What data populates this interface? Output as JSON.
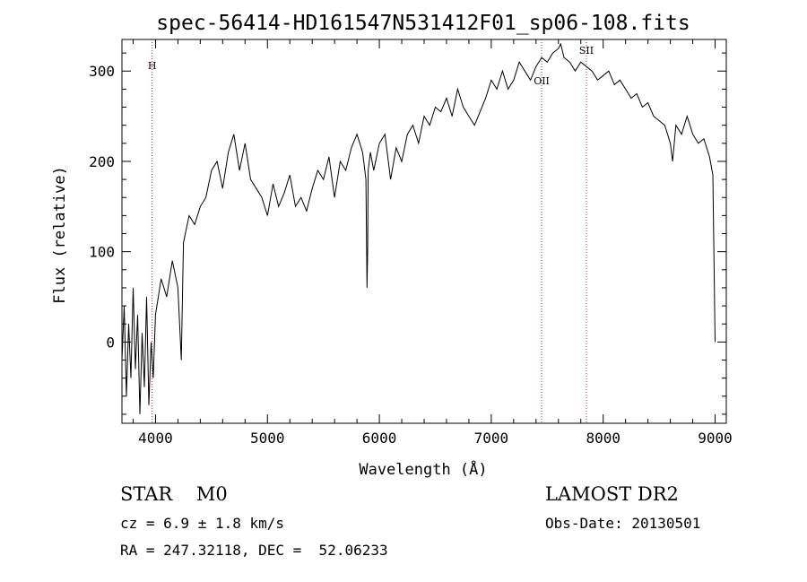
{
  "chart_data": {
    "type": "line",
    "title": "spec-56414-HD161547N531412F01_sp06-108.fits",
    "xlabel": "Wavelength (Å)",
    "ylabel": "Flux (relative)",
    "xlim": [
      3700,
      9100
    ],
    "ylim": [
      -90,
      335
    ],
    "x_ticks": [
      "4000",
      "5000",
      "6000",
      "7000",
      "8000",
      "9000"
    ],
    "y_ticks": [
      "0",
      "100",
      "200",
      "300"
    ],
    "x_tick_values": [
      4000,
      5000,
      6000,
      7000,
      8000,
      9000
    ],
    "y_tick_values": [
      0,
      100,
      200,
      300
    ],
    "grid": false,
    "line_color": "#000000",
    "marker_color": "#b03030",
    "lines": [
      {
        "label": "H",
        "x": 3970
      },
      {
        "label": "OII",
        "x": 7450
      },
      {
        "label": "SII",
        "x": 7850
      }
    ],
    "series": [
      {
        "x": [
          3700,
          3720,
          3740,
          3760,
          3780,
          3800,
          3820,
          3840,
          3860,
          3880,
          3900,
          3920,
          3940,
          3960,
          3980,
          4000,
          4050,
          4100,
          4150,
          4200,
          4230,
          4250,
          4300,
          4350,
          4400,
          4450,
          4500,
          4550,
          4600,
          4650,
          4700,
          4750,
          4800,
          4850,
          4900,
          4950,
          5000,
          5050,
          5100,
          5150,
          5200,
          5250,
          5300,
          5350,
          5400,
          5450,
          5500,
          5550,
          5600,
          5650,
          5700,
          5750,
          5800,
          5850,
          5880,
          5890,
          5895,
          5900,
          5920,
          5950,
          6000,
          6050,
          6100,
          6150,
          6200,
          6250,
          6300,
          6350,
          6400,
          6450,
          6500,
          6550,
          6600,
          6650,
          6700,
          6750,
          6800,
          6850,
          6900,
          6950,
          7000,
          7050,
          7100,
          7150,
          7200,
          7250,
          7300,
          7350,
          7400,
          7450,
          7500,
          7550,
          7600,
          7620,
          7650,
          7700,
          7750,
          7800,
          7850,
          7900,
          7950,
          8000,
          8050,
          8100,
          8150,
          8200,
          8250,
          8300,
          8350,
          8400,
          8450,
          8500,
          8550,
          8600,
          8620,
          8650,
          8700,
          8750,
          8800,
          8850,
          8900,
          8950,
          8980,
          9000
        ],
        "y": [
          -20,
          40,
          -60,
          20,
          -40,
          60,
          -30,
          30,
          -80,
          10,
          -50,
          50,
          -70,
          0,
          -40,
          30,
          70,
          50,
          90,
          60,
          -20,
          110,
          140,
          130,
          150,
          160,
          190,
          200,
          170,
          210,
          230,
          190,
          220,
          180,
          170,
          160,
          140,
          175,
          150,
          165,
          185,
          150,
          160,
          145,
          170,
          190,
          180,
          205,
          160,
          200,
          190,
          215,
          230,
          210,
          180,
          60,
          100,
          190,
          210,
          190,
          220,
          230,
          180,
          215,
          200,
          230,
          240,
          220,
          250,
          240,
          260,
          255,
          270,
          250,
          280,
          260,
          250,
          240,
          255,
          270,
          290,
          280,
          300,
          280,
          290,
          310,
          300,
          290,
          305,
          315,
          310,
          320,
          325,
          330,
          315,
          310,
          300,
          310,
          305,
          300,
          290,
          295,
          300,
          285,
          290,
          280,
          270,
          275,
          260,
          265,
          250,
          245,
          240,
          220,
          200,
          240,
          230,
          250,
          230,
          220,
          225,
          205,
          185,
          0
        ]
      }
    ],
    "info": {
      "class_label": "STAR    M0",
      "survey_label": "LAMOST DR2",
      "cz_text": "cz = 6.9 ± 1.8 km/s",
      "obs_date_text": "Obs-Date: 20130501",
      "coords_text": "RA = 247.32118, DEC =  52.06233"
    }
  }
}
